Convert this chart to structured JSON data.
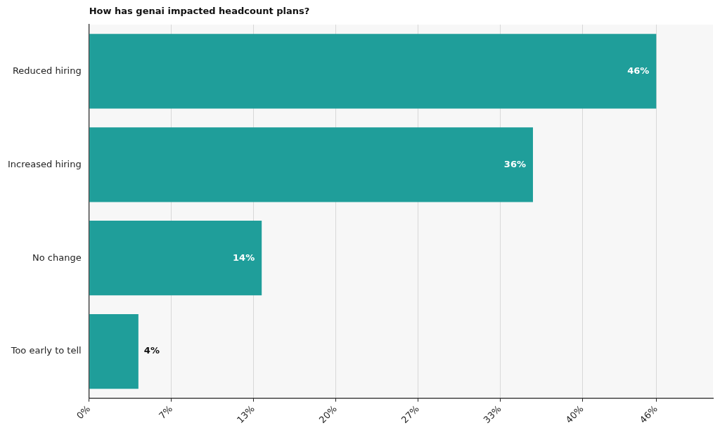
{
  "chart_data": {
    "type": "bar",
    "orientation": "horizontal",
    "title": "How has genai impacted headcount plans?",
    "categories": [
      "Reduced hiring",
      "Increased hiring",
      "No change",
      "Too early to tell"
    ],
    "values": [
      46,
      36,
      14,
      4
    ],
    "color": "#1f9e9a",
    "xlim": [
      0,
      50.6
    ],
    "xticks": [
      {
        "value": 0,
        "label": "0%"
      },
      {
        "value": 6.67,
        "label": "7%"
      },
      {
        "value": 13.33,
        "label": "13%"
      },
      {
        "value": 20,
        "label": "20%"
      },
      {
        "value": 26.67,
        "label": "27%"
      },
      {
        "value": 33.33,
        "label": "33%"
      },
      {
        "value": 40,
        "label": "40%"
      },
      {
        "value": 46,
        "label": "46%"
      }
    ],
    "value_labels": [
      "46%",
      "36%",
      "14%",
      "4%"
    ],
    "grid": "x",
    "legend": false
  }
}
